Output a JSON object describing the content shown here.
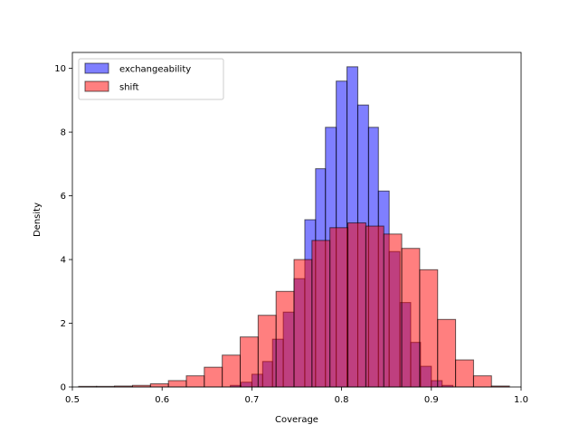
{
  "chart_data": {
    "type": "bar",
    "title": "",
    "xlabel": "Coverage",
    "ylabel": "Density",
    "xlim": [
      0.5,
      1.0
    ],
    "ylim": [
      0,
      10.5
    ],
    "xticks": [
      "0.5",
      "0.6",
      "0.7",
      "0.8",
      "0.9",
      "1.0"
    ],
    "yticks": [
      "0",
      "2",
      "4",
      "6",
      "8",
      "10"
    ],
    "grid": false,
    "legend_position": "top-left",
    "series": [
      {
        "name": "exchangeability",
        "color": "#0000ff",
        "edgecolor": "#000000",
        "alpha": 0.5,
        "bins": [
          [
            0.676,
            0.688,
            0.05
          ],
          [
            0.688,
            0.7,
            0.15
          ],
          [
            0.7,
            0.712,
            0.4
          ],
          [
            0.712,
            0.723,
            0.8
          ],
          [
            0.723,
            0.735,
            1.5
          ],
          [
            0.735,
            0.747,
            2.35
          ],
          [
            0.747,
            0.759,
            3.4
          ],
          [
            0.759,
            0.771,
            5.25
          ],
          [
            0.771,
            0.782,
            6.85
          ],
          [
            0.782,
            0.794,
            8.15
          ],
          [
            0.794,
            0.806,
            9.6
          ],
          [
            0.806,
            0.818,
            10.05
          ],
          [
            0.818,
            0.83,
            8.85
          ],
          [
            0.83,
            0.841,
            8.15
          ],
          [
            0.841,
            0.853,
            6.15
          ],
          [
            0.853,
            0.865,
            4.25
          ],
          [
            0.865,
            0.877,
            2.65
          ],
          [
            0.877,
            0.888,
            1.4
          ],
          [
            0.888,
            0.9,
            0.65
          ],
          [
            0.9,
            0.912,
            0.2
          ],
          [
            0.912,
            0.924,
            0.05
          ]
        ]
      },
      {
        "name": "shift",
        "color": "#ff0000",
        "edgecolor": "#000000",
        "alpha": 0.5,
        "bins": [
          [
            0.507,
            0.527,
            0.02
          ],
          [
            0.527,
            0.547,
            0.02
          ],
          [
            0.547,
            0.567,
            0.03
          ],
          [
            0.567,
            0.587,
            0.05
          ],
          [
            0.587,
            0.607,
            0.1
          ],
          [
            0.607,
            0.627,
            0.2
          ],
          [
            0.627,
            0.647,
            0.35
          ],
          [
            0.647,
            0.667,
            0.62
          ],
          [
            0.667,
            0.687,
            1.0
          ],
          [
            0.687,
            0.707,
            1.57
          ],
          [
            0.707,
            0.727,
            2.25
          ],
          [
            0.727,
            0.747,
            3.0
          ],
          [
            0.747,
            0.767,
            4.0
          ],
          [
            0.767,
            0.787,
            4.6
          ],
          [
            0.787,
            0.807,
            5.0
          ],
          [
            0.807,
            0.827,
            5.15
          ],
          [
            0.827,
            0.847,
            5.05
          ],
          [
            0.847,
            0.867,
            4.8
          ],
          [
            0.867,
            0.887,
            4.35
          ],
          [
            0.887,
            0.907,
            3.68
          ],
          [
            0.907,
            0.927,
            2.12
          ],
          [
            0.927,
            0.947,
            0.85
          ],
          [
            0.947,
            0.967,
            0.35
          ],
          [
            0.967,
            0.987,
            0.03
          ]
        ]
      }
    ]
  }
}
